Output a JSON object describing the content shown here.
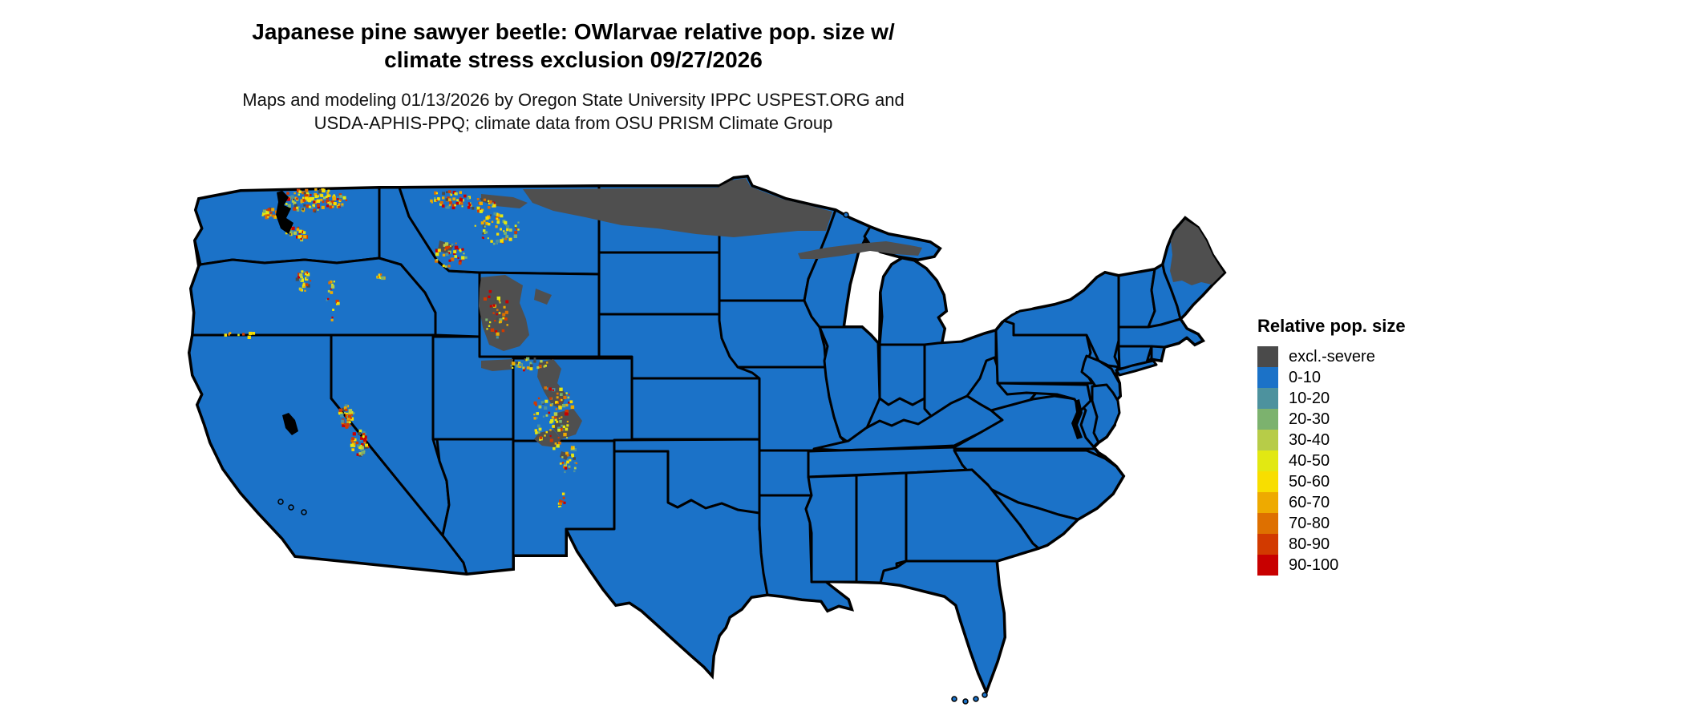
{
  "header": {
    "title_line1": "Japanese pine sawyer beetle: OWlarvae relative pop. size w/",
    "title_line2": "climate stress exclusion 09/27/2026",
    "subtitle_line1": "Maps and modeling 01/13/2026 by Oregon State University IPPC USPEST.ORG and",
    "subtitle_line2": "USDA-APHIS-PPQ; climate data from OSU PRISM Climate Group"
  },
  "legend": {
    "title": "Relative pop. size",
    "entries": [
      {
        "label": "excl.-severe",
        "color": "#4a4a4a"
      },
      {
        "label": "0-10",
        "color": "#1b72c8"
      },
      {
        "label": "10-20",
        "color": "#4d929e"
      },
      {
        "label": "20-30",
        "color": "#7cb26e"
      },
      {
        "label": "30-40",
        "color": "#b7cc48"
      },
      {
        "label": "40-50",
        "color": "#e2e812"
      },
      {
        "label": "50-60",
        "color": "#f8de00"
      },
      {
        "label": "60-70",
        "color": "#eeaa00"
      },
      {
        "label": "70-80",
        "color": "#de7000"
      },
      {
        "label": "80-90",
        "color": "#d23a00"
      },
      {
        "label": "90-100",
        "color": "#c80000"
      }
    ]
  },
  "map": {
    "region": "Contiguous United States",
    "dominant_class_label": "0-10",
    "colors": {
      "land": "#1b72c8",
      "excluded": "#4f4f4f",
      "state_border": "#000000",
      "inland_water": "#000000",
      "background": "#ffffff"
    }
  }
}
